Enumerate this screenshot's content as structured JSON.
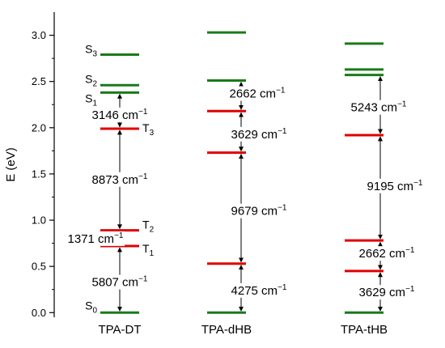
{
  "chart_data": {
    "type": "energy-level-diagram",
    "ylabel": "E (eV)",
    "ylim": [
      -0.05,
      3.25
    ],
    "yticks": [
      "0.0",
      "0.5",
      "1.0",
      "1.5",
      "2.0",
      "2.5",
      "3.0"
    ],
    "yticks_values": [
      0.0,
      0.5,
      1.0,
      1.5,
      2.0,
      2.5,
      3.0
    ],
    "grid": false,
    "colors": {
      "singlet": "#1a7a1a",
      "triplet": "#e00000",
      "axis": "#000000",
      "arrow": "#000000"
    },
    "molecules": [
      {
        "name": "TPA-DT",
        "levels": [
          {
            "kind": "singlet",
            "energy": 0.0,
            "label": "S",
            "sub": "0"
          },
          {
            "kind": "triplet",
            "energy": 0.72,
            "label": "T",
            "sub": "1"
          },
          {
            "kind": "triplet",
            "energy": 0.89,
            "label": "T",
            "sub": "2"
          },
          {
            "kind": "triplet",
            "energy": 1.99,
            "label": "T",
            "sub": "3"
          },
          {
            "kind": "singlet",
            "energy": 2.38,
            "label": "S",
            "sub": "1"
          },
          {
            "kind": "singlet",
            "energy": 2.46,
            "label": "S",
            "sub": "2"
          },
          {
            "kind": "singlet",
            "energy": 2.79,
            "label": "S",
            "sub": "3"
          }
        ],
        "gaps": [
          {
            "from": 0.0,
            "to": 0.72,
            "value": "5807",
            "unit": "cm",
            "exp": "−1"
          },
          {
            "from": 0.72,
            "to": 0.89,
            "value": "1371",
            "unit": "cm",
            "exp": "−1"
          },
          {
            "from": 0.89,
            "to": 1.99,
            "value": "8873",
            "unit": "cm",
            "exp": "−1"
          },
          {
            "from": 1.99,
            "to": 2.38,
            "value": "3146",
            "unit": "cm",
            "exp": "−1"
          }
        ]
      },
      {
        "name": "TPA-dHB",
        "levels": [
          {
            "kind": "singlet",
            "energy": 0.0
          },
          {
            "kind": "triplet",
            "energy": 0.53
          },
          {
            "kind": "triplet",
            "energy": 1.73
          },
          {
            "kind": "triplet",
            "energy": 2.18
          },
          {
            "kind": "singlet",
            "energy": 2.51
          },
          {
            "kind": "singlet",
            "energy": 3.03
          }
        ],
        "gaps": [
          {
            "from": 0.0,
            "to": 0.53,
            "value": "4275",
            "unit": "cm",
            "exp": "−1"
          },
          {
            "from": 0.53,
            "to": 1.73,
            "value": "9679",
            "unit": "cm",
            "exp": "−1"
          },
          {
            "from": 1.73,
            "to": 2.18,
            "value": "3629",
            "unit": "cm",
            "exp": "−1"
          },
          {
            "from": 2.18,
            "to": 2.51,
            "value": "2662",
            "unit": "cm",
            "exp": "−1"
          }
        ]
      },
      {
        "name": "TPA-tHB",
        "levels": [
          {
            "kind": "singlet",
            "energy": 0.0
          },
          {
            "kind": "triplet",
            "energy": 0.45
          },
          {
            "kind": "triplet",
            "energy": 0.78
          },
          {
            "kind": "triplet",
            "energy": 1.92
          },
          {
            "kind": "singlet",
            "energy": 2.57
          },
          {
            "kind": "singlet",
            "energy": 2.63
          },
          {
            "kind": "singlet",
            "energy": 2.91
          }
        ],
        "gaps": [
          {
            "from": 0.0,
            "to": 0.45,
            "value": "3629",
            "unit": "cm",
            "exp": "−1"
          },
          {
            "from": 0.45,
            "to": 0.78,
            "value": "2662",
            "unit": "cm",
            "exp": "−1"
          },
          {
            "from": 0.78,
            "to": 1.92,
            "value": "9195",
            "unit": "cm",
            "exp": "−1"
          },
          {
            "from": 1.92,
            "to": 2.57,
            "value": "5243",
            "unit": "cm",
            "exp": "−1"
          }
        ]
      }
    ]
  }
}
